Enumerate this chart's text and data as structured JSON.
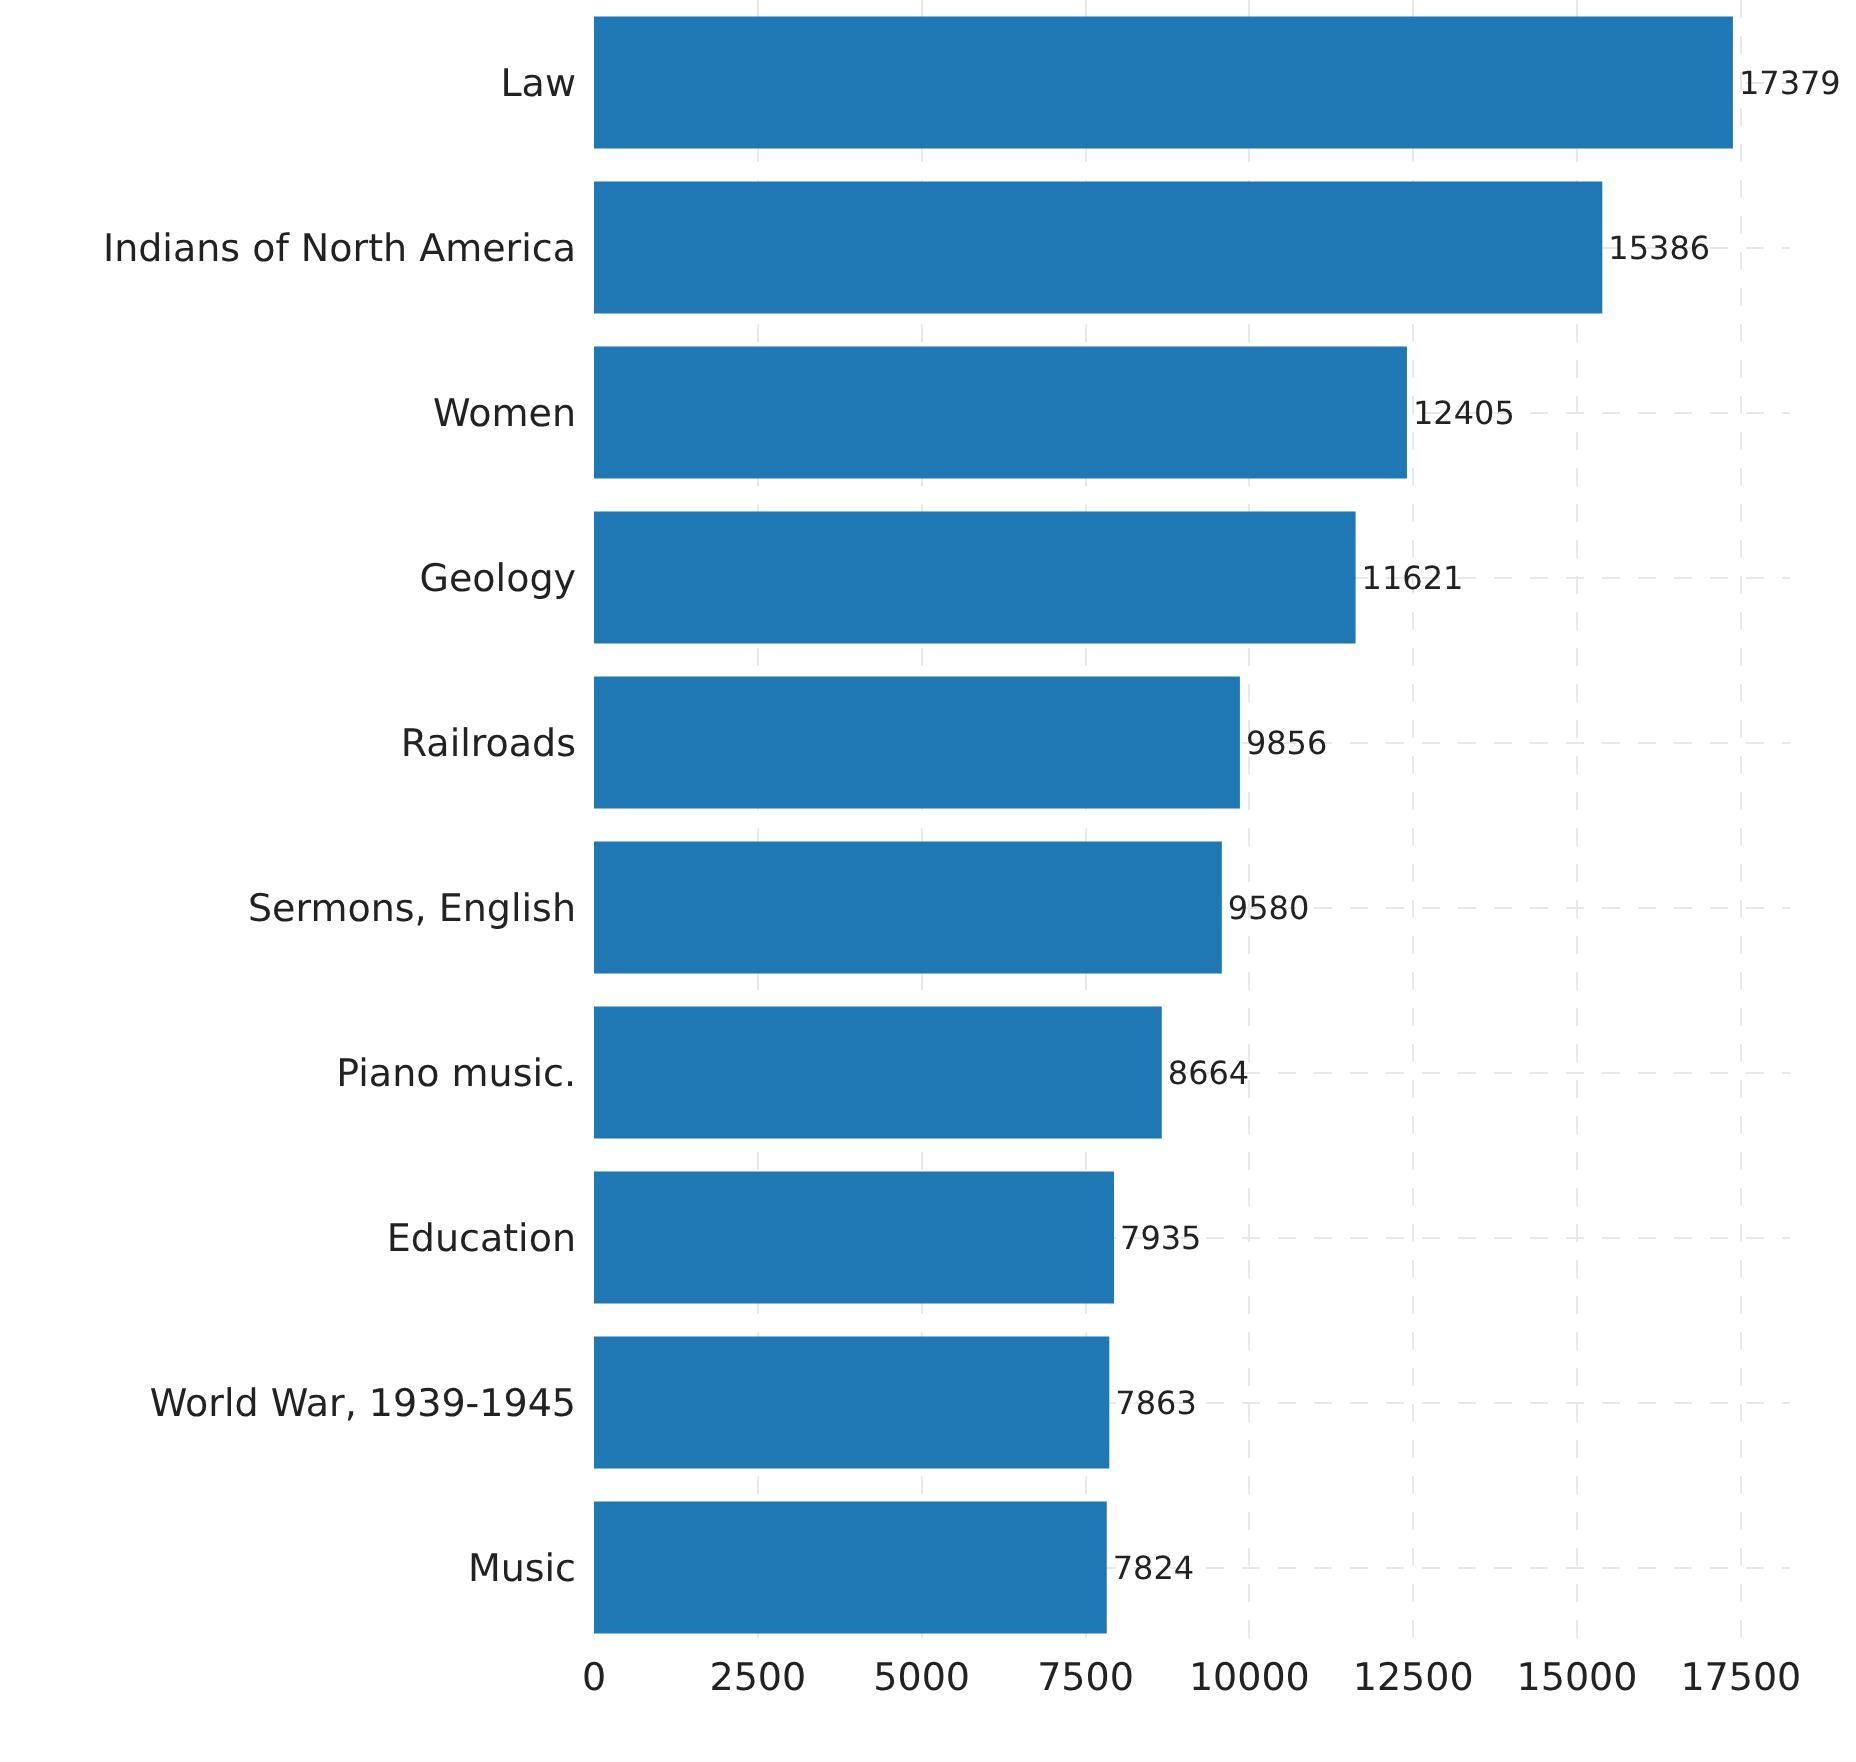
{
  "chart_data": {
    "type": "bar",
    "orientation": "horizontal",
    "categories": [
      "Law",
      "Indians of North America",
      "Women",
      "Geology",
      "Railroads",
      "Sermons, English",
      "Piano music.",
      "Education",
      "World War, 1939-1945",
      "Music"
    ],
    "values": [
      17379,
      15386,
      12405,
      11621,
      9856,
      9580,
      8664,
      7935,
      7863,
      7824
    ],
    "color": "#1f77b4",
    "data_labels": true,
    "grid": true,
    "xlim": [
      0,
      18250
    ],
    "xticks": [
      0,
      2500,
      5000,
      7500,
      10000,
      12500,
      15000,
      17500
    ]
  }
}
